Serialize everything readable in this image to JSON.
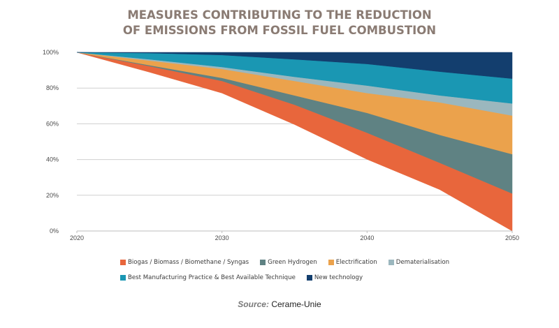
{
  "chart_data": {
    "type": "area",
    "stacked": true,
    "title": "MEASURES CONTRIBUTING TO THE REDUCTION OF EMISSIONS FROM FOSSIL FUEL COMBUSTION",
    "title_lines": [
      "MEASURES CONTRIBUTING TO THE REDUCTION",
      "OF EMISSIONS FROM FOSSIL FUEL COMBUSTION"
    ],
    "xlabel": "",
    "ylabel": "",
    "x": [
      2020,
      2025,
      2030,
      2035,
      2040,
      2045,
      2050
    ],
    "x_ticks": [
      "2020",
      "2030",
      "2040",
      "2050"
    ],
    "x_tick_values": [
      2020,
      2030,
      2040,
      2050
    ],
    "y_ticks": [
      "0%",
      "20%",
      "40%",
      "60%",
      "80%",
      "100%"
    ],
    "y_tick_values": [
      0,
      20,
      40,
      60,
      80,
      100
    ],
    "ylim": [
      0,
      100
    ],
    "xlim": [
      2020,
      2050
    ],
    "grid": true,
    "baseline_remaining_emissions": [
      100,
      88.9,
      77.2,
      59.6,
      40.1,
      23.2,
      0
    ],
    "series": [
      {
        "name": "Biogas / Biomass / Biomethane / Syngas",
        "color": "#e8663c",
        "values": [
          0,
          3.4,
          6.8,
          11.1,
          14.9,
          15.0,
          21.0
        ]
      },
      {
        "name": "Green Hydrogen",
        "color": "#5f8283",
        "values": [
          0,
          0.5,
          1.7,
          5.2,
          11.1,
          15.6,
          22.0
        ]
      },
      {
        "name": "Electrification",
        "color": "#eba24c",
        "values": [
          0,
          2.6,
          5.0,
          8.1,
          11.1,
          18.2,
          21.6
        ]
      },
      {
        "name": "Dematerialisation",
        "color": "#9bb7be",
        "values": [
          0,
          0.7,
          1.1,
          2.3,
          4.2,
          3.9,
          6.8
        ]
      },
      {
        "name": "Best Manufacturing Practice & Best Available Technique",
        "color": "#1a97b3",
        "values": [
          0,
          3.5,
          6.7,
          9.8,
          12.1,
          13.3,
          13.9
        ]
      },
      {
        "name": "New technology",
        "color": "#133e6e",
        "values": [
          0,
          0.4,
          1.5,
          3.9,
          6.5,
          10.8,
          14.7
        ]
      }
    ],
    "legend_position": "bottom",
    "source_label": "Source:",
    "source_text": "Cerame-Unie"
  }
}
